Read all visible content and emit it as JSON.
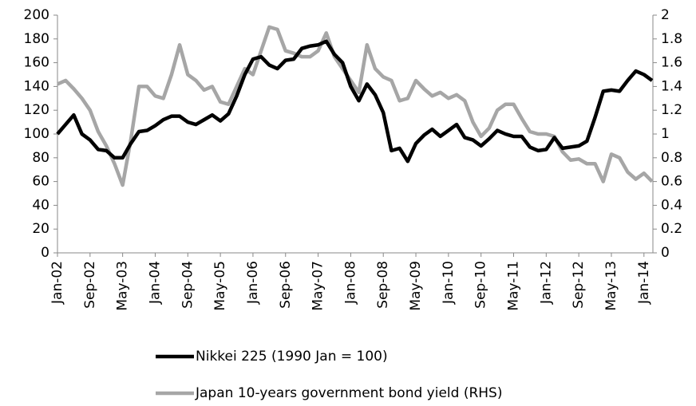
{
  "chart_data": {
    "type": "line",
    "categories": [
      "Jan-02",
      null,
      null,
      null,
      "Sep-02",
      null,
      null,
      null,
      "May-03",
      null,
      null,
      null,
      "Jan-04",
      null,
      null,
      null,
      "Sep-04",
      null,
      null,
      null,
      "May-05",
      null,
      null,
      null,
      "Jan-06",
      null,
      null,
      null,
      "Sep-06",
      null,
      null,
      null,
      "May-07",
      null,
      null,
      null,
      "Jan-08",
      null,
      null,
      null,
      "Sep-08",
      null,
      null,
      null,
      "May-09",
      null,
      null,
      null,
      "Jan-10",
      null,
      null,
      null,
      "Sep-10",
      null,
      null,
      null,
      "May-11",
      null,
      null,
      null,
      "Jan-12",
      null,
      null,
      null,
      "Sep-12",
      null,
      null,
      null,
      "May-13",
      null,
      null,
      null,
      "Jan-14",
      null
    ],
    "series": [
      {
        "name": "Nikkei 225 (1990 Jan = 100)",
        "color": "#000000",
        "axis": "y",
        "values": [
          100,
          108,
          116,
          100,
          95,
          87,
          86,
          80,
          80,
          92,
          102,
          103,
          107,
          112,
          115,
          115,
          110,
          108,
          112,
          116,
          111,
          117,
          132,
          150,
          163,
          165,
          158,
          155,
          162,
          163,
          172,
          174,
          175,
          178,
          167,
          160,
          140,
          128,
          142,
          133,
          118,
          86,
          88,
          77,
          92,
          99,
          104,
          98,
          103,
          108,
          97,
          95,
          90,
          96,
          103,
          100,
          98,
          98,
          89,
          86,
          87,
          97,
          88,
          89,
          90,
          94,
          114,
          136,
          137,
          136,
          145,
          153,
          150,
          145
        ]
      },
      {
        "name": "Japan 10-years government bond yield (RHS)",
        "color": "#a6a6a6",
        "axis": "y2",
        "values": [
          1.42,
          1.45,
          1.38,
          1.3,
          1.2,
          1.02,
          0.9,
          0.75,
          0.57,
          0.95,
          1.4,
          1.4,
          1.32,
          1.3,
          1.5,
          1.75,
          1.5,
          1.45,
          1.37,
          1.4,
          1.27,
          1.25,
          1.4,
          1.55,
          1.5,
          1.7,
          1.9,
          1.88,
          1.7,
          1.68,
          1.65,
          1.65,
          1.7,
          1.85,
          1.65,
          1.55,
          1.45,
          1.35,
          1.75,
          1.55,
          1.48,
          1.45,
          1.28,
          1.3,
          1.45,
          1.38,
          1.32,
          1.35,
          1.3,
          1.33,
          1.28,
          1.1,
          0.98,
          1.05,
          1.2,
          1.25,
          1.25,
          1.13,
          1.02,
          1.0,
          1.0,
          0.98,
          0.85,
          0.78,
          0.79,
          0.75,
          0.75,
          0.6,
          0.83,
          0.8,
          0.68,
          0.62,
          0.67,
          0.6
        ]
      }
    ],
    "ylim": [
      0,
      200
    ],
    "yticks": [
      0,
      20,
      40,
      60,
      80,
      100,
      120,
      140,
      160,
      180,
      200
    ],
    "y2lim": [
      0,
      2
    ],
    "y2ticks": [
      0,
      0.2,
      0.4,
      0.6,
      0.8,
      1,
      1.2,
      1.4,
      1.6,
      1.8,
      2
    ],
    "grid": false,
    "legend": "bottom"
  }
}
